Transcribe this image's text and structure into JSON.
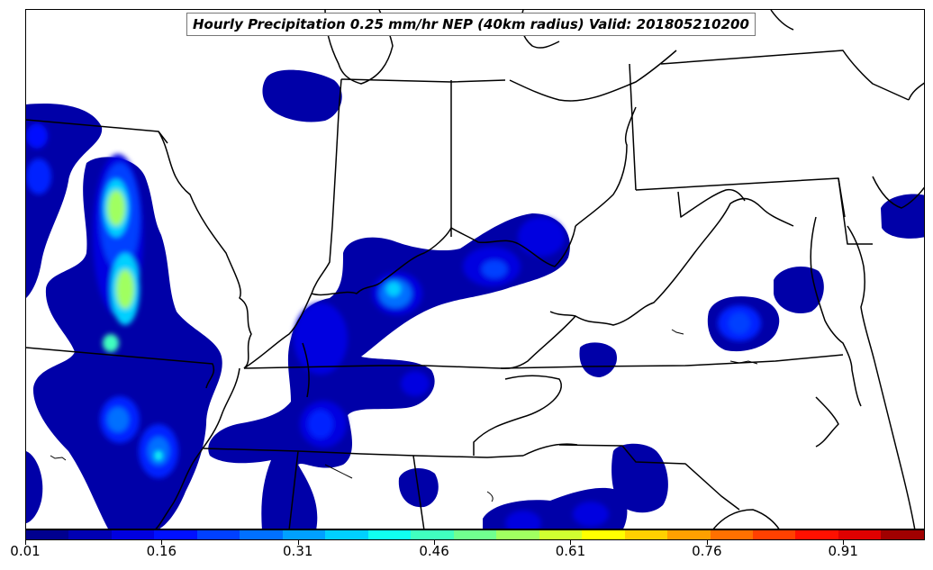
{
  "title": "Hourly Precipitation 0.25 mm/hr NEP (40km radius) Valid: 201805210200",
  "colorbar": {
    "ticks": [
      "0.01",
      "0.16",
      "0.31",
      "0.46",
      "0.61",
      "0.76",
      "0.91"
    ],
    "min": 0.01,
    "max": 1.0,
    "colors": [
      "#00008f",
      "#0000b3",
      "#0000e0",
      "#0010ff",
      "#0040ff",
      "#0070ff",
      "#00a0ff",
      "#00d0ff",
      "#10fff0",
      "#40ffbf",
      "#70ff8f",
      "#a0ff60",
      "#d0ff30",
      "#ffff00",
      "#ffd000",
      "#ffa000",
      "#ff7000",
      "#ff4000",
      "#ff1000",
      "#e00000",
      "#a00000"
    ]
  },
  "map": {
    "region": "Central and Eastern United States",
    "colors": {
      "background": "#ffffff",
      "borders": "#000000"
    }
  }
}
